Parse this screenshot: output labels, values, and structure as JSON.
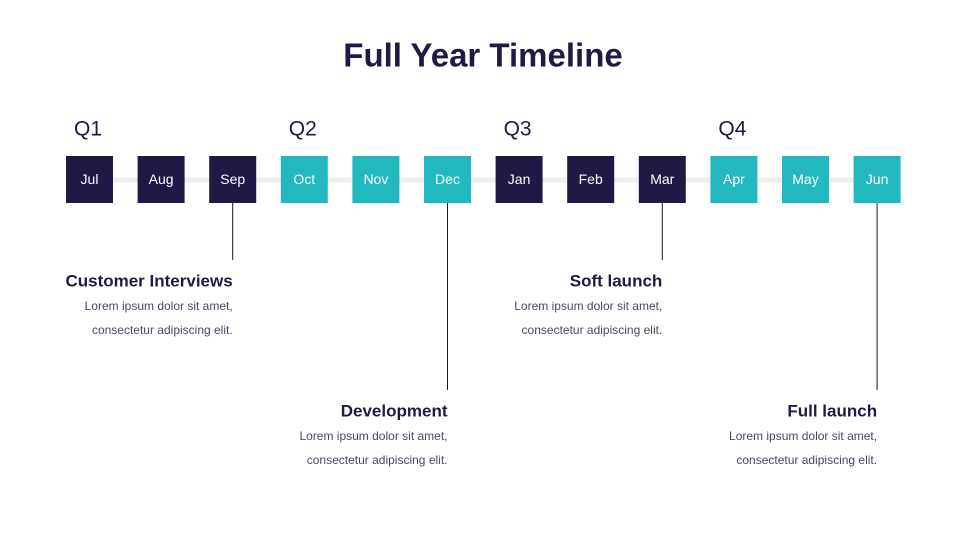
{
  "title": "Full Year Timeline",
  "quarters": [
    "Q1",
    "Q2",
    "Q3",
    "Q4"
  ],
  "months": [
    "Jul",
    "Aug",
    "Sep",
    "Oct",
    "Nov",
    "Dec",
    "Jan",
    "Feb",
    "Mar",
    "Apr",
    "May",
    "Jun"
  ],
  "milestones": [
    {
      "title": "Customer Interviews",
      "lines": [
        "Lorem ipsum dolor sit amet,",
        "consectetur adipiscing elit."
      ]
    },
    {
      "title": "Development",
      "lines": [
        "Lorem ipsum dolor sit amet,",
        "consectetur adipiscing elit."
      ]
    },
    {
      "title": "Soft launch",
      "lines": [
        "Lorem ipsum dolor sit amet,",
        "consectetur adipiscing elit."
      ]
    },
    {
      "title": "Full launch",
      "lines": [
        "Lorem ipsum dolor sit amet,",
        "consectetur adipiscing elit."
      ]
    }
  ]
}
